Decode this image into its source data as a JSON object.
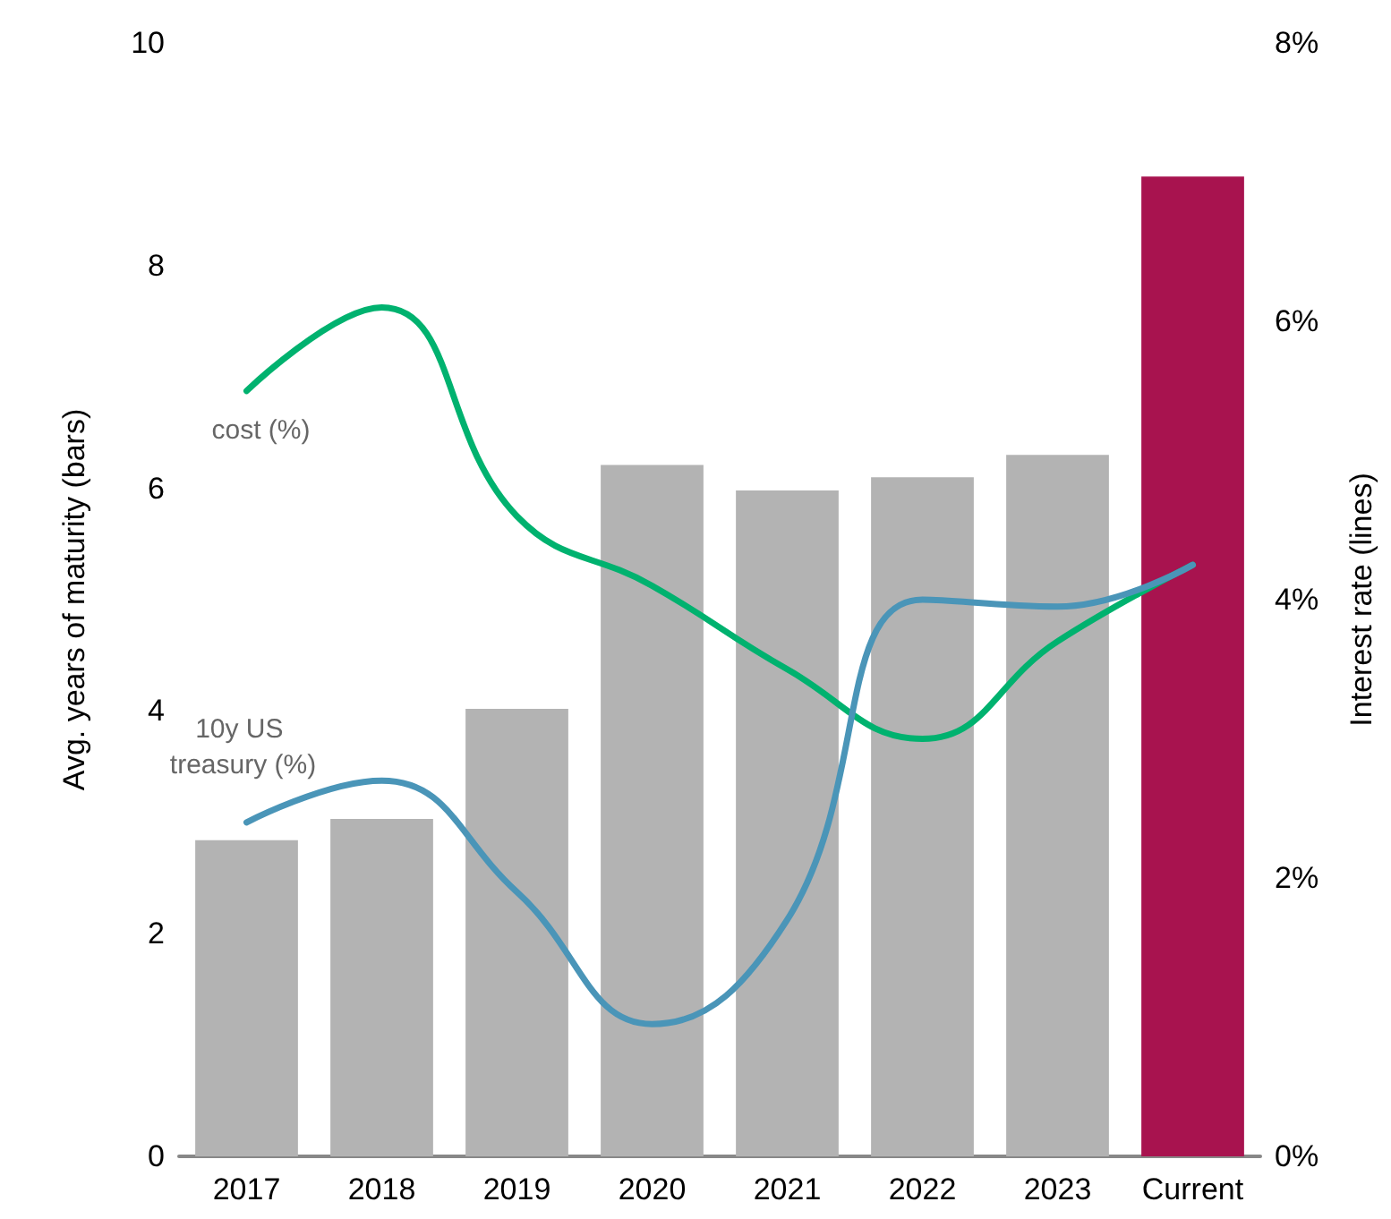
{
  "chart_data": {
    "type": "bar",
    "ylabel": "Avg. years of maturity (bars)",
    "y2label": "Interest rate (lines)",
    "categories": [
      "2017",
      "2018",
      "2019",
      "2020",
      "2021",
      "2022",
      "2023",
      "Current"
    ],
    "series": [
      {
        "colors": [
          "#b3b3b3",
          "#b3b3b3",
          "#b3b3b3",
          "#b3b3b3",
          "#b3b3b3",
          "#b3b3b3",
          "#b3b3b3",
          "#a8134f"
        ],
        "values": [
          2.84,
          3.03,
          4.02,
          6.21,
          5.98,
          6.1,
          6.3,
          8.8
        ]
      },
      {
        "type": "line",
        "name": "cost (%)",
        "axis": "y2",
        "color": "#00b26f",
        "values": [
          5.5,
          6.1,
          4.6,
          4.1,
          3.5,
          3.0,
          3.7,
          4.25
        ]
      },
      {
        "type": "line",
        "name": "10y US treasury (%)",
        "axis": "y2",
        "color": "#4a95b8",
        "values": [
          2.4,
          2.7,
          1.9,
          0.95,
          1.7,
          4.0,
          3.95,
          4.25
        ]
      }
    ],
    "ylim": [
      0,
      10
    ],
    "yticks": [
      0,
      2,
      4,
      6,
      8,
      10
    ],
    "y2lim": [
      0,
      8
    ],
    "y2ticks": [
      {
        "value": 0,
        "label": "0%"
      },
      {
        "value": 2,
        "label": "2%"
      },
      {
        "value": 4,
        "label": "4%"
      },
      {
        "value": 6,
        "label": "6%"
      },
      {
        "value": 8,
        "label": "8%"
      }
    ],
    "grid": false,
    "legend": false,
    "marker": "none",
    "line_style": "solid"
  }
}
